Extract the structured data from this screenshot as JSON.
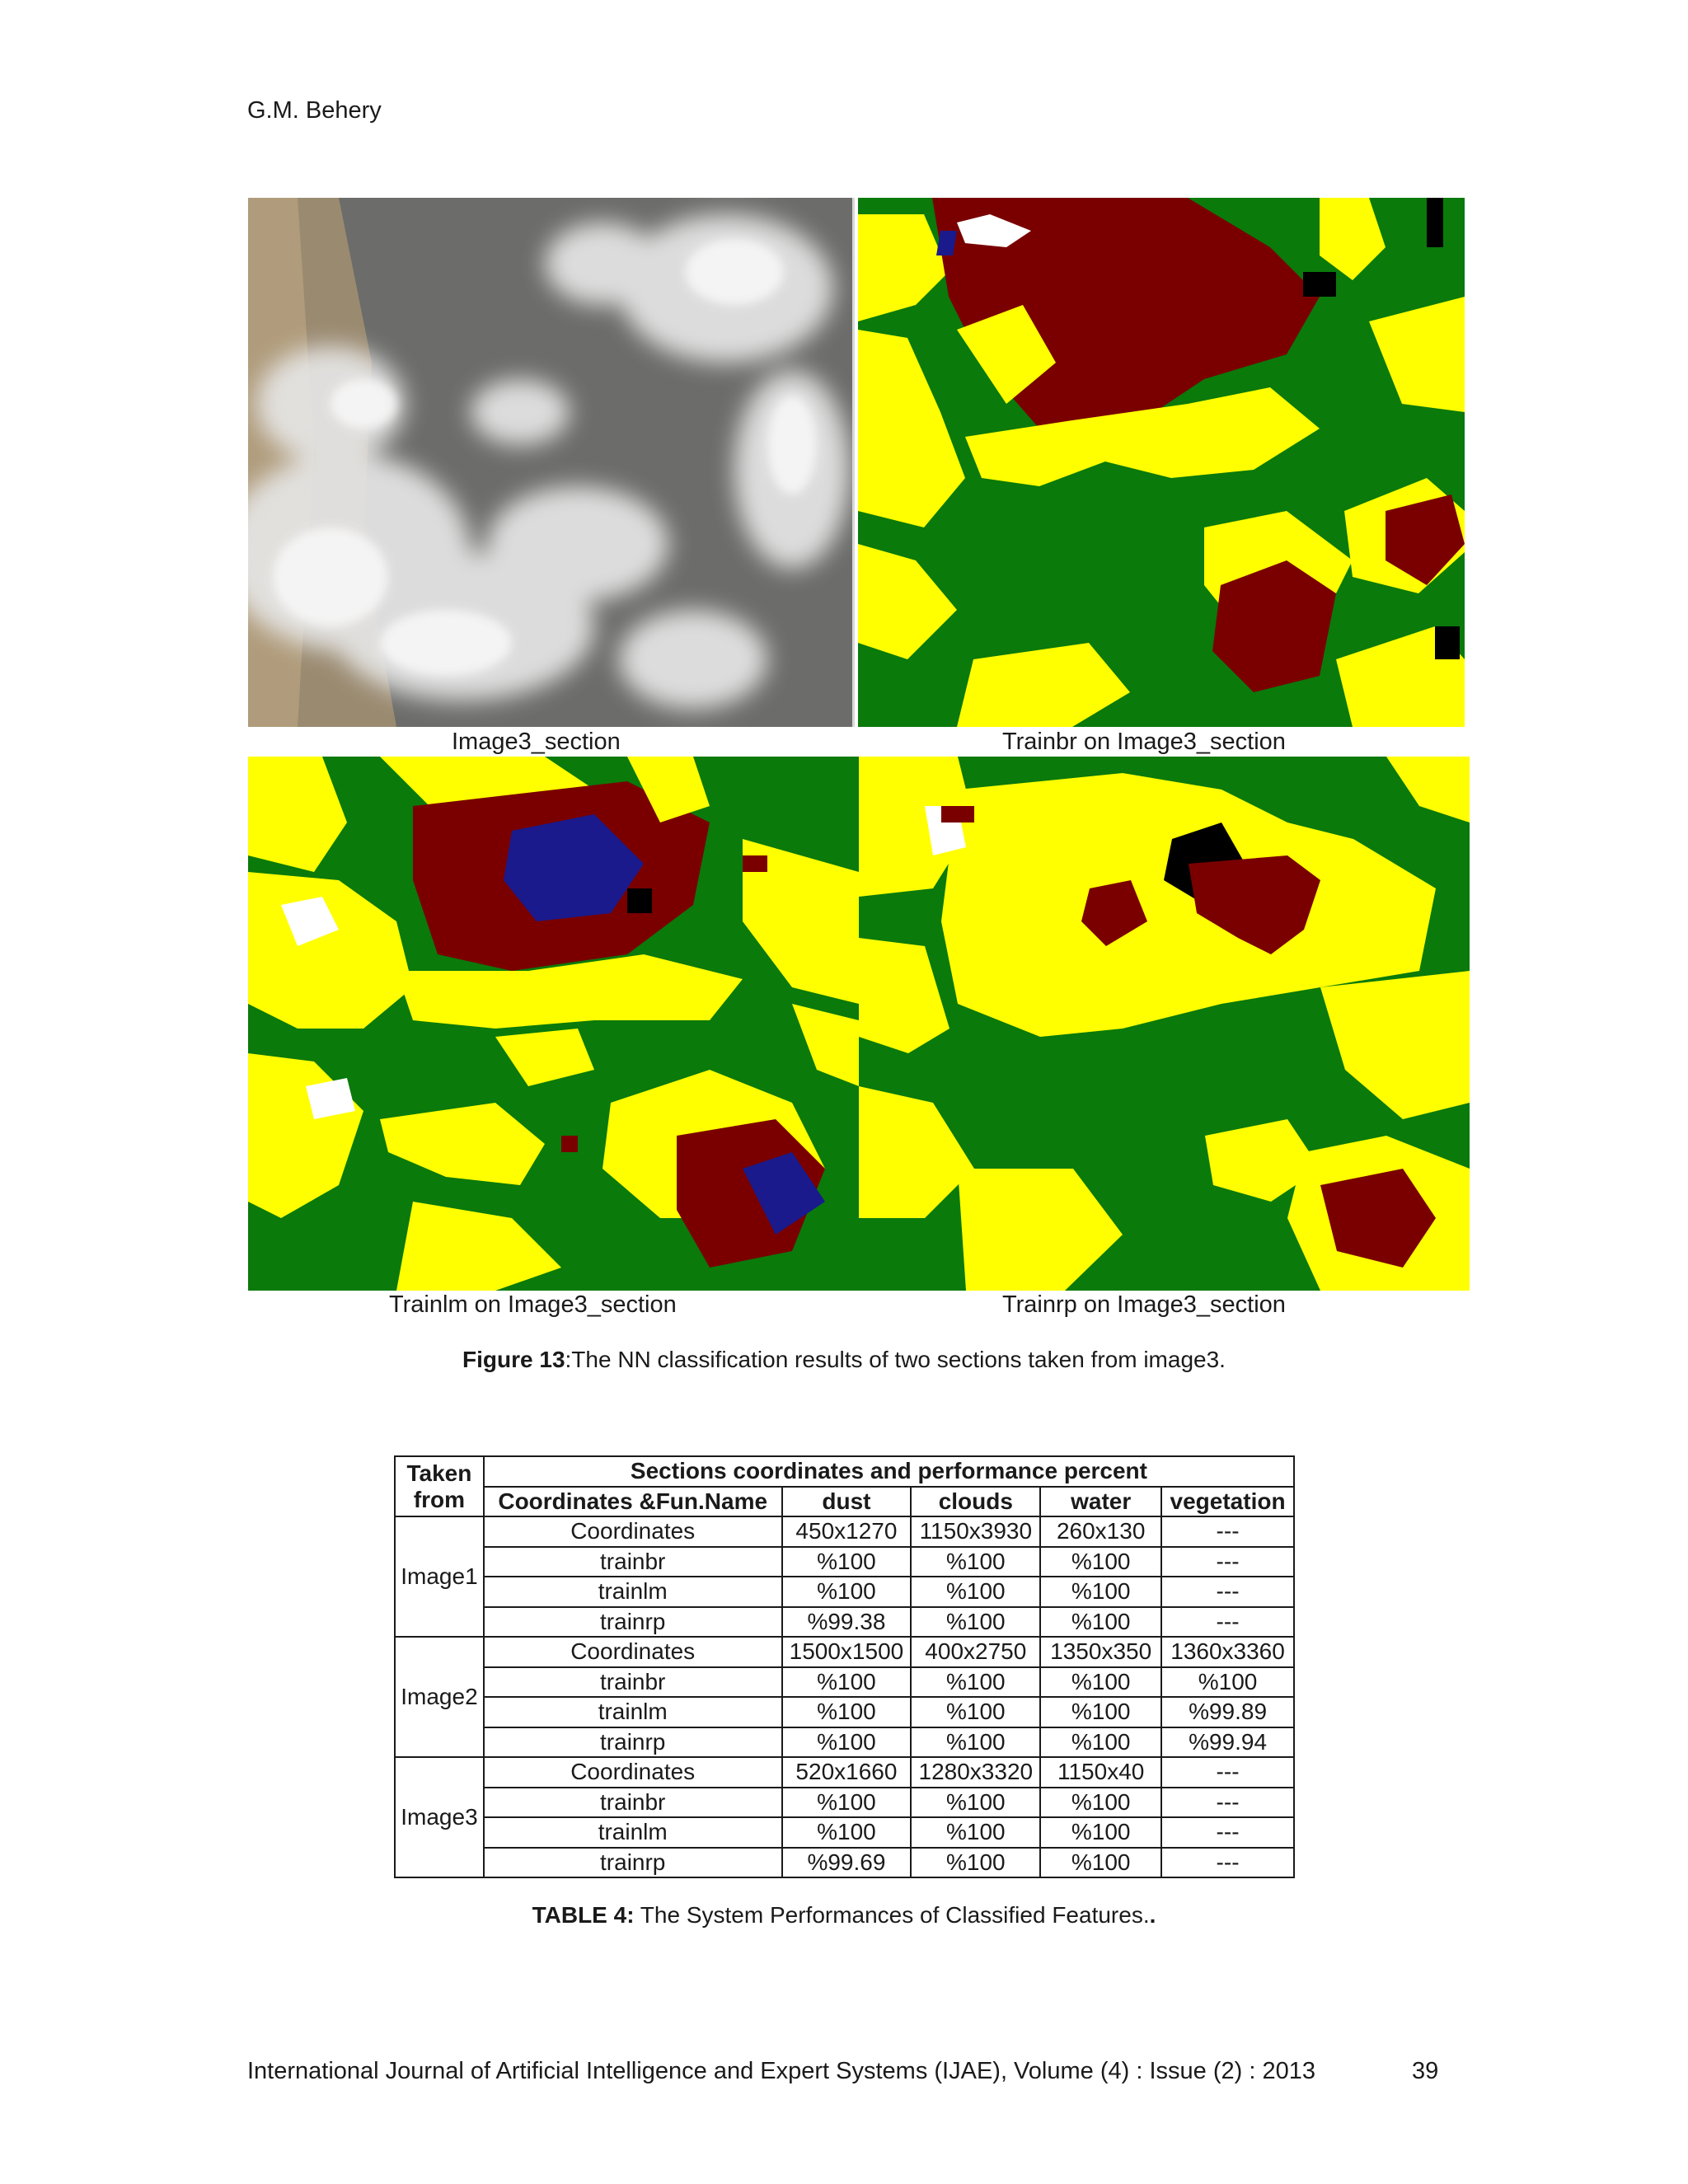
{
  "header": {
    "author": "G.M. Behery"
  },
  "figure": {
    "panels": [
      {
        "caption": "Image3_section",
        "kind": "satellite"
      },
      {
        "caption": "Trainbr on Image3_section",
        "kind": "classification"
      },
      {
        "caption": "Trainlm on Image3_section",
        "kind": "classification"
      },
      {
        "caption": "Trainrp on Image3_section",
        "kind": "classification"
      }
    ],
    "class_colors": {
      "vegetation": "#0a7a0a",
      "dust": "#ffff00",
      "clouds": "#7a0000",
      "water": "#1a1a8c",
      "other": "#000000",
      "white": "#ffffff"
    },
    "caption_bold": "Figure 13",
    "caption_text": ":The NN classification results of two sections taken from image3."
  },
  "table": {
    "head": {
      "taken_from": "Taken from",
      "group": "Sections coordinates and performance percent",
      "columns": [
        "Coordinates &Fun.Name",
        "dust",
        "clouds",
        "water",
        "vegetation"
      ]
    },
    "groups": [
      {
        "name": "Image1",
        "rows": [
          [
            "Coordinates",
            "450x1270",
            "1150x3930",
            "260x130",
            "---"
          ],
          [
            "trainbr",
            "%100",
            "%100",
            "%100",
            "---"
          ],
          [
            "trainlm",
            "%100",
            "%100",
            "%100",
            "---"
          ],
          [
            "trainrp",
            "%99.38",
            "%100",
            "%100",
            "---"
          ]
        ]
      },
      {
        "name": "Image2",
        "rows": [
          [
            "Coordinates",
            "1500x1500",
            "400x2750",
            "1350x350",
            "1360x3360"
          ],
          [
            "trainbr",
            "%100",
            "%100",
            "%100",
            "%100"
          ],
          [
            "trainlm",
            "%100",
            "%100",
            "%100",
            "%99.89"
          ],
          [
            "trainrp",
            "%100",
            "%100",
            "%100",
            "%99.94"
          ]
        ]
      },
      {
        "name": "Image3",
        "rows": [
          [
            "Coordinates",
            "520x1660",
            "1280x3320",
            "1150x40",
            "---"
          ],
          [
            "trainbr",
            "%100",
            "%100",
            "%100",
            "---"
          ],
          [
            "trainlm",
            "%100",
            "%100",
            "%100",
            "---"
          ],
          [
            "trainrp",
            "%99.69",
            "%100",
            "%100",
            "---"
          ]
        ]
      }
    ],
    "caption_bold": "TABLE 4:",
    "caption_text": " The System Performances of Classified Features."
  },
  "footer": {
    "journal": "International Journal of Artificial Intelligence and Expert Systems (IJAE), Volume (4) : Issue (2) : 2013",
    "page_number": "39"
  }
}
